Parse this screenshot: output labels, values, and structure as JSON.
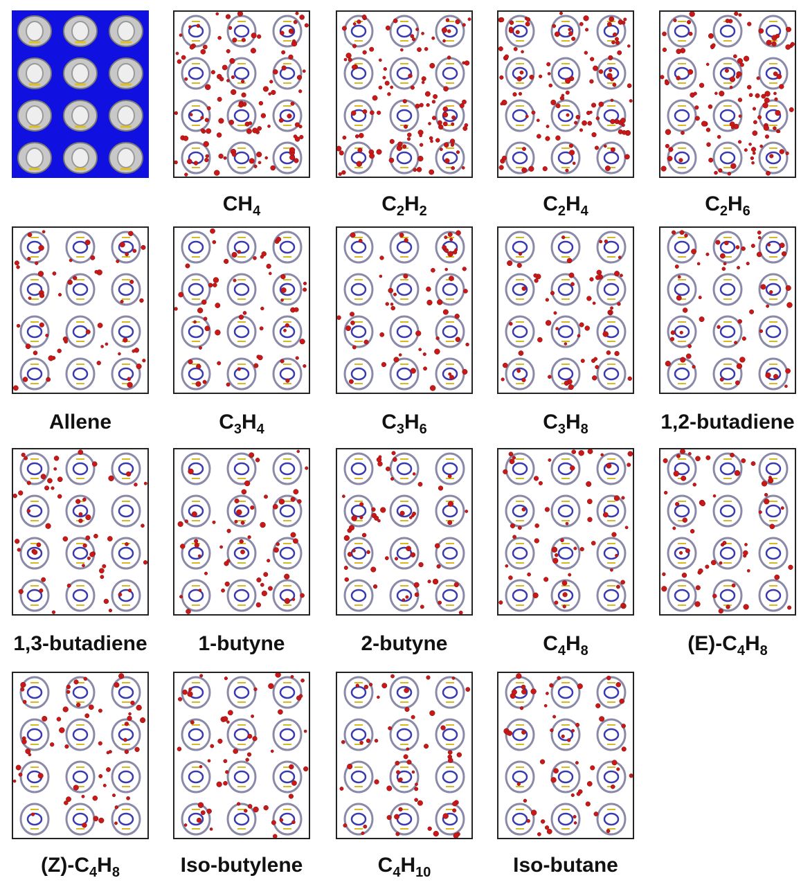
{
  "panels": [
    {},
    {
      "label": [
        {
          "text": "CH"
        },
        {
          "sub": "4"
        }
      ]
    },
    {
      "label": [
        {
          "text": "C"
        },
        {
          "sub": "2"
        },
        {
          "text": "H"
        },
        {
          "sub": "2"
        }
      ]
    },
    {
      "label": [
        {
          "text": "C"
        },
        {
          "sub": "2"
        },
        {
          "text": "H"
        },
        {
          "sub": "4"
        }
      ]
    },
    {
      "label": [
        {
          "text": "C"
        },
        {
          "sub": "2"
        },
        {
          "text": "H"
        },
        {
          "sub": "6"
        }
      ]
    },
    {
      "label": [
        {
          "text": "Allene"
        }
      ]
    },
    {
      "label": [
        {
          "text": "C"
        },
        {
          "sub": "3"
        },
        {
          "text": "H"
        },
        {
          "sub": "4"
        }
      ]
    },
    {
      "label": [
        {
          "text": "C"
        },
        {
          "sub": "3"
        },
        {
          "text": "H"
        },
        {
          "sub": "6"
        }
      ]
    },
    {
      "label": [
        {
          "text": "C"
        },
        {
          "sub": "3"
        },
        {
          "text": "H"
        },
        {
          "sub": "8"
        }
      ]
    },
    {
      "label": [
        {
          "text": "1,2-butadiene"
        }
      ]
    },
    {
      "label": [
        {
          "text": "1,3-butadiene"
        }
      ]
    },
    {
      "label": [
        {
          "text": "1-butyne"
        }
      ]
    },
    {
      "label": [
        {
          "text": "2-butyne"
        }
      ]
    },
    {
      "label": [
        {
          "text": "C"
        },
        {
          "sub": "4"
        },
        {
          "text": "H"
        },
        {
          "sub": "8"
        }
      ]
    },
    {
      "label": [
        {
          "text": "(E)-C"
        },
        {
          "sub": "4"
        },
        {
          "text": "H"
        },
        {
          "sub": "8"
        }
      ]
    },
    {
      "label": [
        {
          "text": "(Z)-C"
        },
        {
          "sub": "4"
        },
        {
          "text": "H"
        },
        {
          "sub": "8"
        }
      ]
    },
    {
      "label": [
        {
          "text": "Iso-butylene"
        }
      ]
    },
    {
      "label": [
        {
          "text": "C"
        },
        {
          "sub": "4"
        },
        {
          "text": "H"
        },
        {
          "sub": "10"
        }
      ]
    },
    {
      "label": [
        {
          "text": "Iso-butane"
        }
      ]
    }
  ]
}
